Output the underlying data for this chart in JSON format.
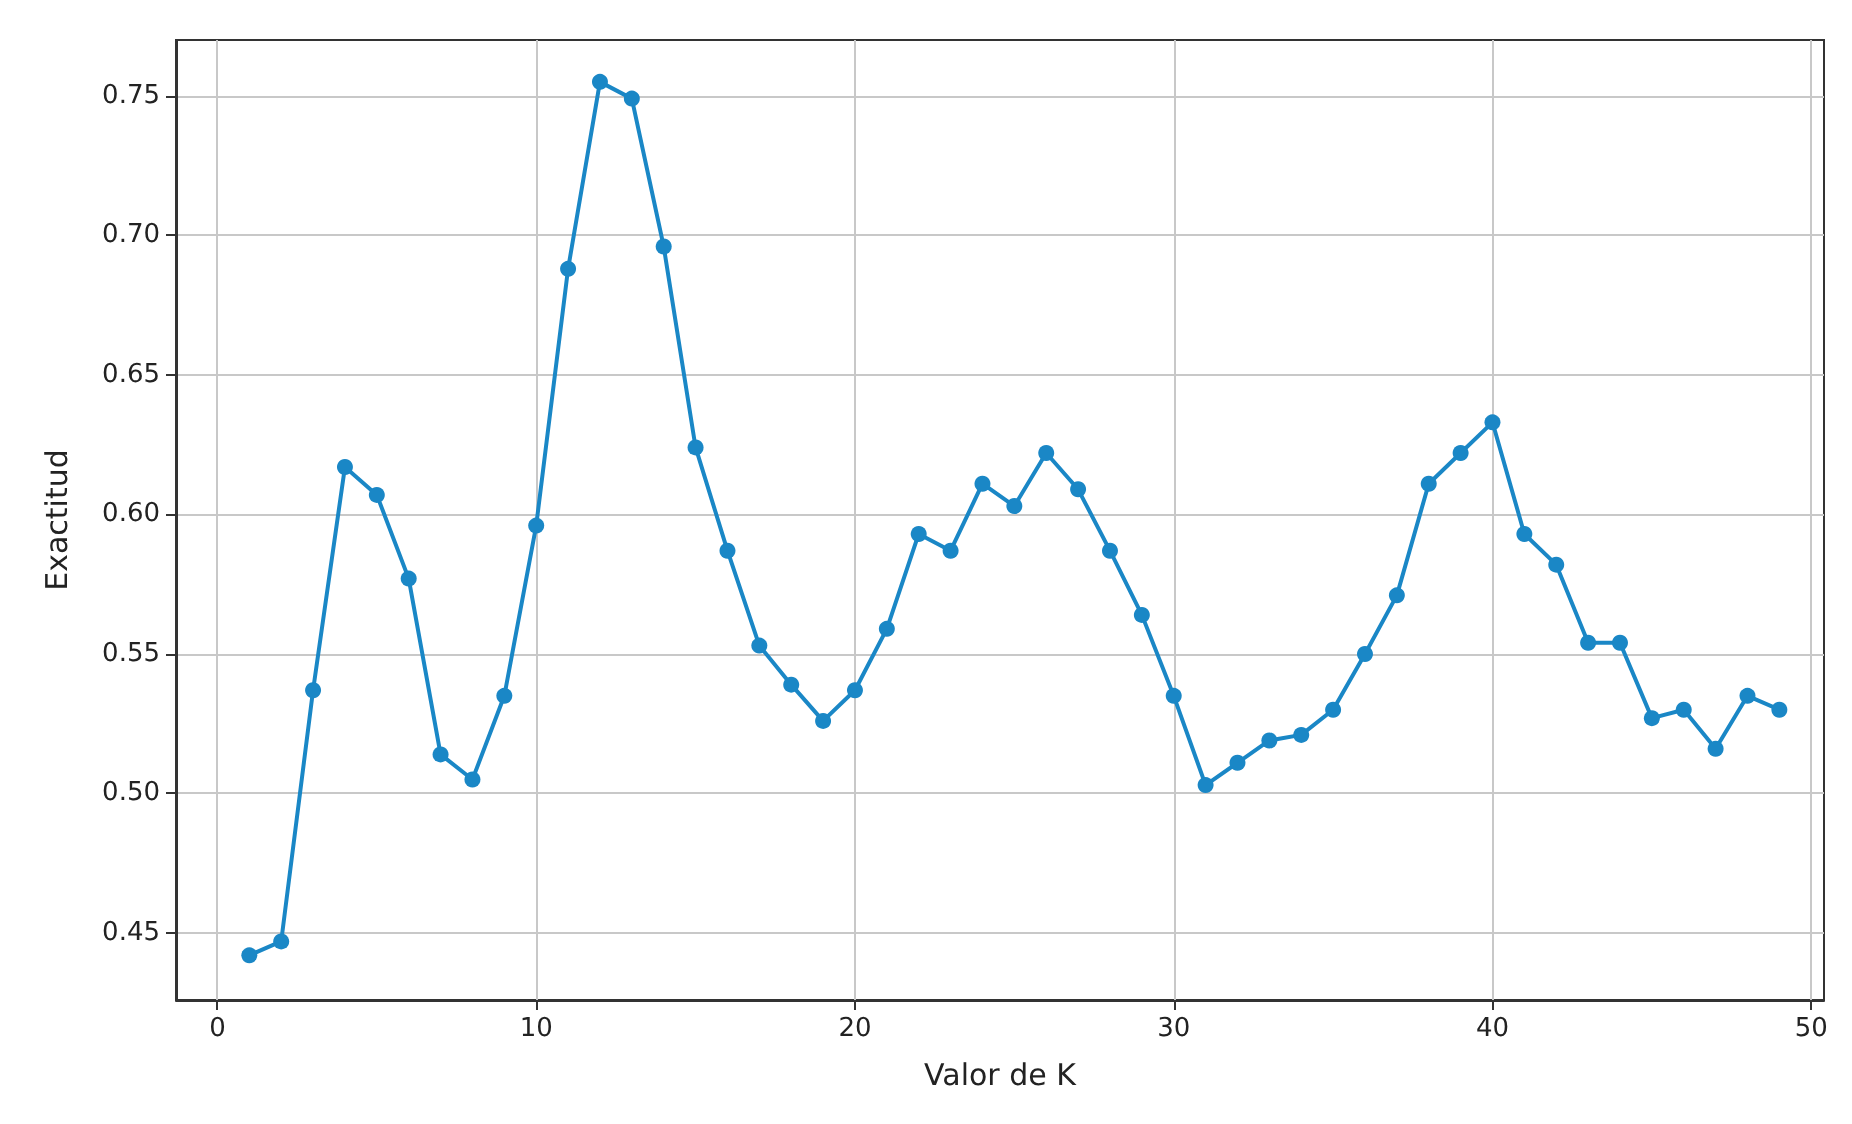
{
  "chart_data": {
    "type": "line",
    "xlabel": "Valor de K",
    "ylabel": "Exactitud",
    "x": [
      1,
      2,
      3,
      4,
      5,
      6,
      7,
      8,
      9,
      10,
      11,
      12,
      13,
      14,
      15,
      16,
      17,
      18,
      19,
      20,
      21,
      22,
      23,
      24,
      25,
      26,
      27,
      28,
      29,
      30,
      31,
      32,
      33,
      34,
      35,
      36,
      37,
      38,
      39,
      40,
      41,
      42,
      43,
      44,
      45,
      46,
      47,
      48,
      49
    ],
    "series": [
      {
        "color": "#1a87c6",
        "values": [
          0.442,
          0.447,
          0.537,
          0.617,
          0.607,
          0.577,
          0.514,
          0.505,
          0.535,
          0.596,
          0.688,
          0.755,
          0.749,
          0.696,
          0.624,
          0.587,
          0.553,
          0.539,
          0.526,
          0.537,
          0.559,
          0.593,
          0.587,
          0.611,
          0.603,
          0.622,
          0.609,
          0.587,
          0.564,
          0.535,
          0.503,
          0.511,
          0.519,
          0.521,
          0.53,
          0.55,
          0.571,
          0.611,
          0.622,
          0.633,
          0.593,
          0.582,
          0.554,
          0.554,
          0.527,
          0.53,
          0.516,
          0.535,
          0.53
        ]
      }
    ],
    "xlim": [
      -1.3,
      50.4
    ],
    "ylim": [
      0.426,
      0.77
    ],
    "xticks": [
      0,
      10,
      20,
      30,
      40,
      50
    ],
    "yticks": [
      {
        "value": 0.45,
        "label": "0.45"
      },
      {
        "value": 0.5,
        "label": "0.50"
      },
      {
        "value": 0.55,
        "label": "0.55"
      },
      {
        "value": 0.6,
        "label": "0.60"
      },
      {
        "value": 0.65,
        "label": "0.65"
      },
      {
        "value": 0.7,
        "label": "0.70"
      },
      {
        "value": 0.75,
        "label": "0.75"
      }
    ],
    "grid": true,
    "marker": "circle",
    "line_style": "solid"
  }
}
